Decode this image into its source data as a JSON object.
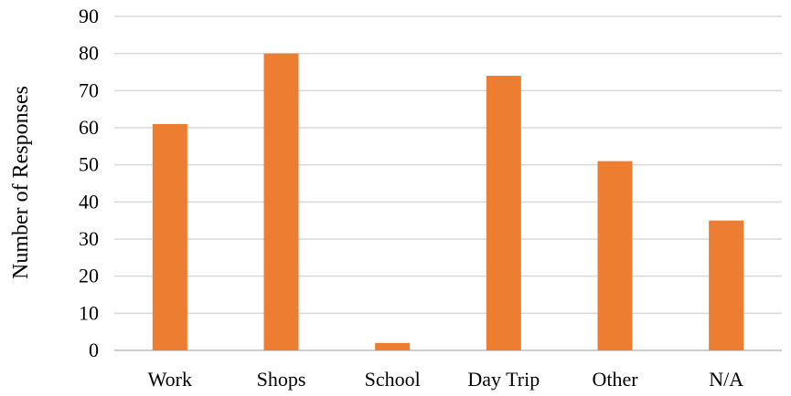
{
  "chart_data": {
    "type": "bar",
    "categories": [
      "Work",
      "Shops",
      "School",
      "Day Trip",
      "Other",
      "N/A"
    ],
    "values": [
      61,
      80,
      2,
      74,
      51,
      35
    ],
    "title": "",
    "xlabel": "",
    "ylabel": "Number of Responses",
    "ylim": [
      0,
      90
    ],
    "yticks": [
      "0",
      "10",
      "20",
      "30",
      "40",
      "50",
      "60",
      "70",
      "80",
      "90"
    ],
    "grid": true,
    "legend": "none",
    "bar_color": "#ed7d31"
  }
}
